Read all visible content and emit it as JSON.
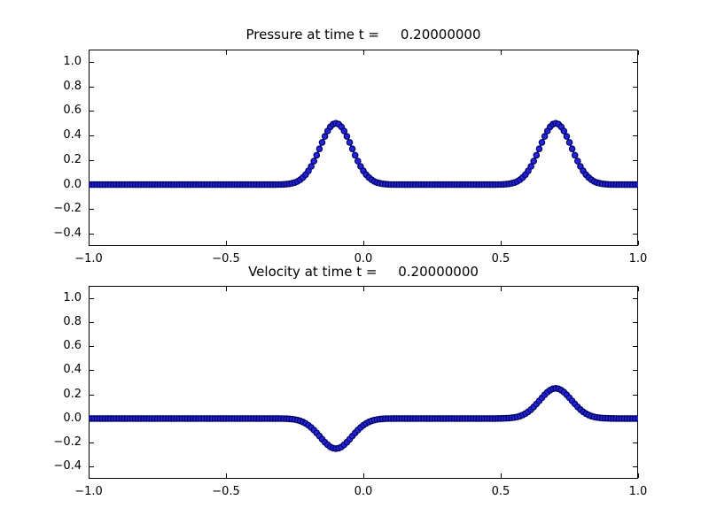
{
  "figure": {
    "background": "#ffffff",
    "frame_color": "#000000"
  },
  "chart_data": [
    {
      "type": "line",
      "title": "Pressure at time t =     0.20000000",
      "xlabel": "",
      "ylabel": "",
      "xlim": [
        -1.0,
        1.0
      ],
      "ylim": [
        -0.5,
        1.1
      ],
      "xtick_values": [
        -1.0,
        -0.5,
        0.0,
        0.5,
        1.0
      ],
      "xtick_labels": [
        "−1.0",
        "−0.5",
        "0.0",
        "0.5",
        "1.0"
      ],
      "ytick_values": [
        -0.4,
        -0.2,
        0.0,
        0.2,
        0.4,
        0.6,
        0.8,
        1.0
      ],
      "ytick_labels": [
        "−0.4",
        "−0.2",
        "0.0",
        "0.2",
        "0.4",
        "0.6",
        "0.8",
        "1.0"
      ],
      "grid": false,
      "legend": null,
      "series": [
        {
          "name": "pressure",
          "style": "markers+line",
          "line_color": "#2424d6",
          "marker_edge_color": "#000066",
          "baseline": 0.0,
          "x_sampling": {
            "min": -1.0,
            "max": 1.0,
            "points": 201
          },
          "model": "sum_of_gaussians",
          "gaussians": [
            {
              "center": -0.1,
              "amplitude": 0.5,
              "beta": 150
            },
            {
              "center": 0.7,
              "amplitude": 0.5,
              "beta": 150
            }
          ]
        }
      ]
    },
    {
      "type": "line",
      "title": "Velocity at time t =     0.20000000",
      "xlabel": "",
      "ylabel": "",
      "xlim": [
        -1.0,
        1.0
      ],
      "ylim": [
        -0.5,
        1.1
      ],
      "xtick_values": [
        -1.0,
        -0.5,
        0.0,
        0.5,
        1.0
      ],
      "xtick_labels": [
        "−1.0",
        "−0.5",
        "0.0",
        "0.5",
        "1.0"
      ],
      "ytick_values": [
        -0.4,
        -0.2,
        0.0,
        0.2,
        0.4,
        0.6,
        0.8,
        1.0
      ],
      "ytick_labels": [
        "−0.4",
        "−0.2",
        "0.0",
        "0.2",
        "0.4",
        "0.6",
        "0.8",
        "1.0"
      ],
      "grid": false,
      "legend": null,
      "series": [
        {
          "name": "velocity",
          "style": "markers+line",
          "line_color": "#2424d6",
          "marker_edge_color": "#000066",
          "baseline": 0.0,
          "x_sampling": {
            "min": -1.0,
            "max": 1.0,
            "points": 201
          },
          "model": "sum_of_gaussians",
          "gaussians": [
            {
              "center": -0.1,
              "amplitude": -0.25,
              "beta": 150
            },
            {
              "center": 0.7,
              "amplitude": 0.25,
              "beta": 150
            }
          ]
        }
      ]
    }
  ]
}
